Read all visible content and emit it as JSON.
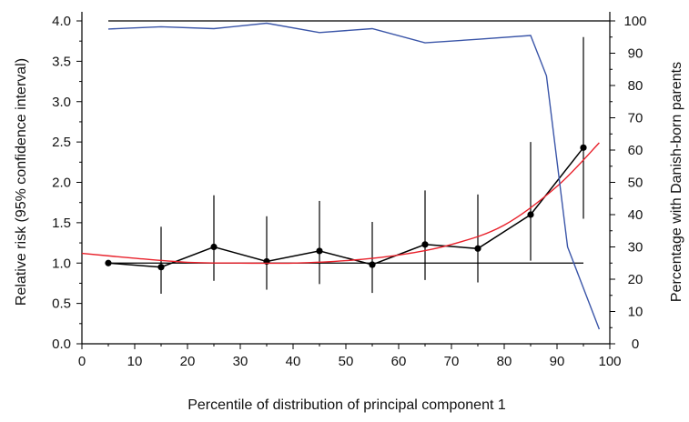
{
  "chart_data": {
    "type": "line",
    "title": "",
    "xlabel": "Percentile of distribution of principal component 1",
    "ylabel_left": "Relative risk (95% confidence interval)",
    "ylabel_right": "Percentage with Danish-born parents",
    "xlim": [
      0,
      100
    ],
    "ylim_left": [
      0,
      4
    ],
    "ylim_right": [
      0,
      100
    ],
    "x_ticks": [
      0,
      10,
      20,
      30,
      40,
      50,
      60,
      70,
      80,
      90,
      100
    ],
    "y_left_ticks": [
      "0.0",
      "0.5",
      "1.0",
      "1.5",
      "2.0",
      "2.5",
      "3.0",
      "3.5",
      "4.0"
    ],
    "y_right_ticks": [
      0,
      10,
      20,
      30,
      40,
      50,
      60,
      70,
      80,
      90,
      100
    ],
    "grid": false,
    "legend": "none",
    "reference_lines": [
      {
        "axis": "left",
        "y": 1.0,
        "x_from": 5,
        "x_to": 95,
        "color": "#000000"
      },
      {
        "axis": "right",
        "y": 100,
        "x_from": 5,
        "x_to": 100,
        "color": "#000000"
      }
    ],
    "series": [
      {
        "axis": "left",
        "kind": "errorbar-line",
        "color": "#000000",
        "points": [
          {
            "x": 5,
            "y": 1.0,
            "lo": 1.0,
            "hi": 1.0
          },
          {
            "x": 15,
            "y": 0.95,
            "lo": 0.62,
            "hi": 1.45
          },
          {
            "x": 25,
            "y": 1.2,
            "lo": 0.78,
            "hi": 1.84
          },
          {
            "x": 35,
            "y": 1.02,
            "lo": 0.67,
            "hi": 1.58
          },
          {
            "x": 45,
            "y": 1.15,
            "lo": 0.74,
            "hi": 1.77
          },
          {
            "x": 55,
            "y": 0.98,
            "lo": 0.63,
            "hi": 1.51
          },
          {
            "x": 65,
            "y": 1.23,
            "lo": 0.79,
            "hi": 1.9
          },
          {
            "x": 75,
            "y": 1.18,
            "lo": 0.76,
            "hi": 1.85
          },
          {
            "x": 85,
            "y": 1.6,
            "lo": 1.03,
            "hi": 2.5
          },
          {
            "x": 95,
            "y": 2.43,
            "lo": 1.55,
            "hi": 3.8
          }
        ]
      },
      {
        "axis": "left",
        "kind": "curve",
        "color": "#e8202a",
        "x": [
          0,
          10,
          20,
          30,
          40,
          50,
          60,
          70,
          80,
          90,
          98
        ],
        "y": [
          1.12,
          1.06,
          1.01,
          1.0,
          1.0,
          1.03,
          1.1,
          1.23,
          1.47,
          1.95,
          2.49
        ]
      },
      {
        "axis": "right",
        "kind": "line",
        "color": "#3a55a8",
        "x": [
          5,
          15,
          25,
          35,
          45,
          55,
          65,
          75,
          85,
          88,
          92,
          98
        ],
        "y": [
          97.5,
          98.2,
          97.6,
          99.3,
          96.4,
          97.6,
          93.2,
          94.3,
          95.5,
          83,
          30,
          4.5
        ]
      }
    ]
  }
}
